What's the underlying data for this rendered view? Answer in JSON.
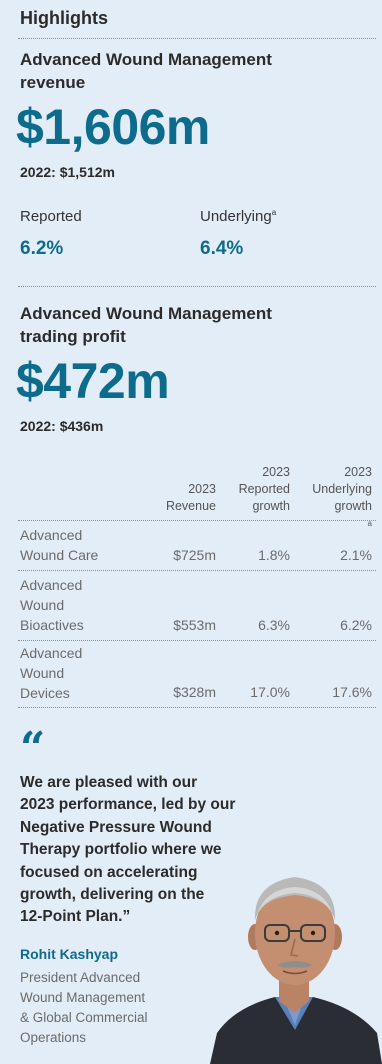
{
  "highlights_title": "Highlights",
  "revenue": {
    "label_line1": "Advanced Wound Management",
    "label_line2": "revenue",
    "value": "$1,606m",
    "prior": "2022: $1,512m",
    "reported_label": "Reported",
    "reported_value": "6.2%",
    "underlying_label": "Underlying",
    "underlying_footnote": "a",
    "underlying_value": "6.4%"
  },
  "trading_profit": {
    "label_line1": "Advanced Wound Management",
    "label_line2": "trading profit",
    "value": "$472m",
    "prior": "2022: $436m"
  },
  "table": {
    "headers": [
      {
        "line1": "",
        "line2": "2023",
        "line3": "Revenue"
      },
      {
        "line1": "2023",
        "line2": "Reported",
        "line3": "growth"
      },
      {
        "line1": "2023",
        "line2": "Underlying",
        "line3": "growth",
        "footnote": "a"
      }
    ],
    "rows": [
      {
        "name_lines": [
          "Advanced",
          "Wound Care"
        ],
        "revenue": "$725m",
        "reported": "1.8%",
        "underlying": "2.1%"
      },
      {
        "name_lines": [
          "Advanced",
          "Wound",
          "Bioactives"
        ],
        "revenue": "$553m",
        "reported": "6.3%",
        "underlying": "6.2%"
      },
      {
        "name_lines": [
          "Advanced",
          "Wound",
          "Devices"
        ],
        "revenue": "$328m",
        "reported": "17.0%",
        "underlying": "17.6%"
      }
    ]
  },
  "quote": {
    "mark": "“",
    "lines": [
      "We are pleased with our",
      "2023 performance, led by our",
      "Negative Pressure Wound",
      "Therapy portfolio where we",
      "focused on accelerating",
      "growth, delivering on the",
      "12-Point Plan.”"
    ],
    "author": "Rohit Kashyap",
    "role_lines": [
      "President Advanced",
      "Wound Management",
      "& Global Commercial",
      "Operations"
    ]
  },
  "colors": {
    "background": "#e3edf8",
    "accent": "#0d6b8c",
    "text": "#2b2b2b",
    "muted": "#6b6b6b"
  }
}
